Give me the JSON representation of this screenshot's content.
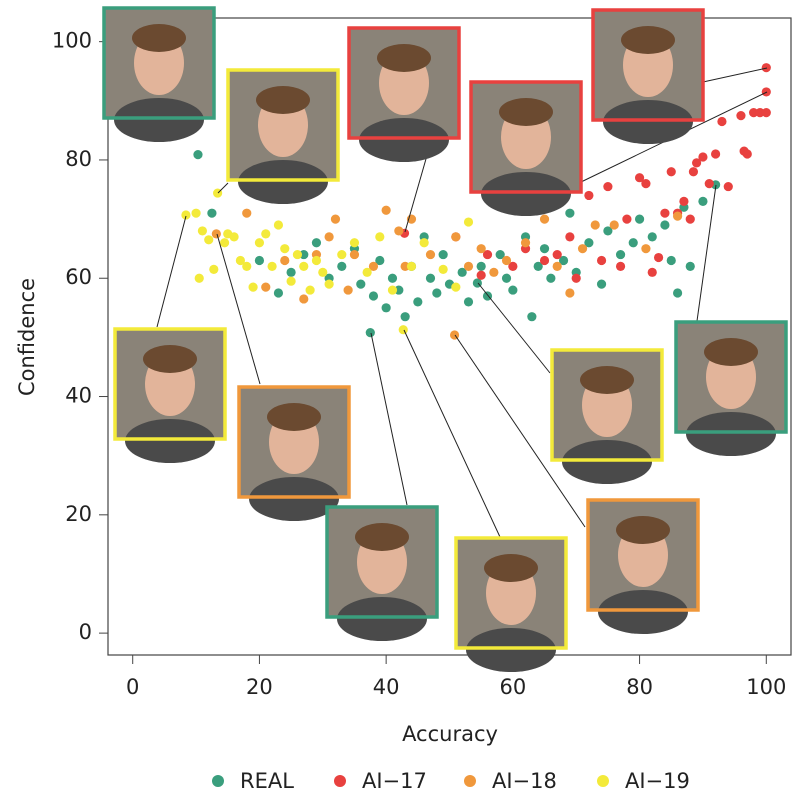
{
  "chart_data": {
    "type": "scatter",
    "x_label": "Accuracy",
    "y_label": "Confidence",
    "xlim": [
      -3.9,
      103.9
    ],
    "ylim": [
      -3.7,
      104
    ],
    "xticks": [
      0,
      20,
      40,
      60,
      80,
      100
    ],
    "yticks": [
      0,
      20,
      40,
      60,
      80,
      100
    ],
    "grid": false,
    "legend": "bottom",
    "series": [
      {
        "name": "REAL",
        "color": "#3a9e7d",
        "x": [
          7.1,
          10.3,
          12.5,
          20,
          23,
          25,
          27,
          29,
          31,
          33,
          35,
          36,
          37.5,
          38,
          39,
          40,
          41,
          42,
          43,
          44,
          45,
          46,
          47,
          48,
          49,
          50,
          52,
          53,
          54.4,
          55,
          56,
          58,
          59,
          60,
          62,
          63,
          64,
          65,
          66,
          68,
          69,
          70,
          72,
          74,
          75,
          77,
          79,
          80,
          82,
          84,
          85,
          86,
          87,
          88,
          90,
          92
        ],
        "values": [
          85.3,
          80.9,
          71,
          63,
          57.5,
          61,
          64,
          66,
          60,
          62,
          65,
          59,
          50.8,
          57,
          63,
          55,
          60,
          58,
          53.5,
          62,
          56,
          67,
          60,
          57.5,
          64,
          59,
          61,
          56,
          59.2,
          62,
          57,
          64,
          60,
          58,
          67,
          53.5,
          62,
          65,
          60,
          63,
          71,
          61,
          66,
          59,
          68,
          64,
          66,
          70,
          67,
          69,
          63,
          57.5,
          72,
          62,
          73,
          75.8
        ]
      },
      {
        "name": "AI−17",
        "color": "#e8413f",
        "x": [
          42.9,
          51,
          55,
          56,
          60,
          62,
          63,
          65,
          67,
          69,
          70,
          72,
          74,
          75,
          77,
          78,
          80,
          81,
          82,
          83,
          84,
          85,
          86,
          87,
          88,
          88.5,
          89,
          90,
          91,
          92,
          93,
          94,
          96,
          96.5,
          97,
          98,
          99,
          100,
          100,
          100
        ],
        "values": [
          67.6,
          67,
          60.5,
          64,
          62,
          65,
          72,
          63,
          64,
          67,
          60,
          74,
          63,
          75.5,
          62,
          70,
          77,
          76,
          61,
          63.5,
          71,
          78,
          71,
          73,
          70,
          78,
          79.5,
          80.5,
          76,
          81,
          86.5,
          75.5,
          87.5,
          81.5,
          81,
          88,
          88,
          88,
          91.5,
          95.6
        ]
      },
      {
        "name": "AI−18",
        "color": "#f0983c",
        "x": [
          13.2,
          18,
          21,
          24,
          27,
          29,
          31,
          32,
          34,
          35,
          38,
          40,
          42,
          43,
          44,
          47,
          50.8,
          51,
          53,
          55,
          57,
          59,
          62,
          65,
          67,
          69,
          71,
          73,
          76,
          81,
          86
        ],
        "values": [
          67.5,
          71,
          58.5,
          63,
          56.5,
          64,
          67,
          70,
          58,
          64,
          62,
          71.5,
          68,
          62,
          70,
          64,
          50.4,
          67,
          62,
          65,
          61,
          63,
          66,
          70,
          62,
          57.5,
          65,
          69,
          69,
          65,
          70.5
        ]
      },
      {
        "name": "AI−19",
        "color": "#f3ea3a",
        "x": [
          8.4,
          10,
          10.5,
          11,
          12,
          12.8,
          13.4,
          14.5,
          15,
          16,
          17,
          18,
          19,
          20,
          21,
          22,
          23,
          24,
          25,
          26,
          27,
          28,
          29,
          30,
          31,
          33,
          35,
          37,
          39,
          41,
          42.7,
          44,
          46,
          49,
          51,
          53
        ],
        "values": [
          70.7,
          71,
          60,
          68,
          66.5,
          61.5,
          74.4,
          66,
          67.5,
          67,
          63,
          62,
          58.5,
          66,
          67.5,
          62,
          69,
          65,
          59.5,
          64,
          62,
          58,
          63,
          61,
          59,
          64,
          66,
          61,
          67,
          58,
          51.3,
          62,
          66,
          61.5,
          58.5,
          69.5
        ]
      }
    ]
  }
}
